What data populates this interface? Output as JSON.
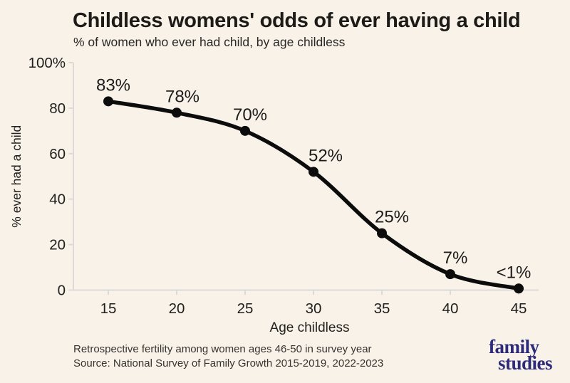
{
  "page": {
    "background": "#f8f2e9"
  },
  "header": {
    "title": "Childless womens' odds of ever having a child",
    "subtitle": "% of women who ever had child, by age childless"
  },
  "chart_data": {
    "type": "line",
    "x": [
      15,
      20,
      25,
      30,
      35,
      40,
      45
    ],
    "values": [
      83,
      78,
      70,
      52,
      25,
      7,
      0.7
    ],
    "point_labels": [
      "83%",
      "78%",
      "70%",
      "52%",
      "25%",
      "7%",
      "<1%"
    ],
    "series_name": "% ever had a child",
    "title": "Childless womens' odds of ever having a child",
    "subtitle": "% of women who ever had child, by age childless",
    "xlabel": "Age childless",
    "ylabel": "% ever had a child",
    "x_ticks": [
      15,
      20,
      25,
      30,
      35,
      40,
      45
    ],
    "x_tick_labels": [
      "15",
      "20",
      "25",
      "30",
      "35",
      "40",
      "45"
    ],
    "y_ticks": [
      0,
      20,
      40,
      60,
      80,
      100
    ],
    "y_tick_labels": [
      "0",
      "20",
      "40",
      "60",
      "80",
      "100%"
    ],
    "xlim": [
      15,
      45
    ],
    "ylim": [
      0,
      100
    ],
    "grid": false,
    "legend": "none",
    "line_color": "#0c0c0c",
    "dot_color": "#0c0c0c",
    "axis_color": "#ddd9d9",
    "tick_label_color": "#21201e",
    "point_label_color": "#1d1c1a"
  },
  "footer": {
    "note": "Retrospective fertility among women ages 46-50 in survey year",
    "source": "Source: National Survey of Family Growth 2015-2019, 2022-2023"
  },
  "logo": {
    "line1": "family",
    "line2": "studies",
    "color": "#2e2b7c"
  }
}
